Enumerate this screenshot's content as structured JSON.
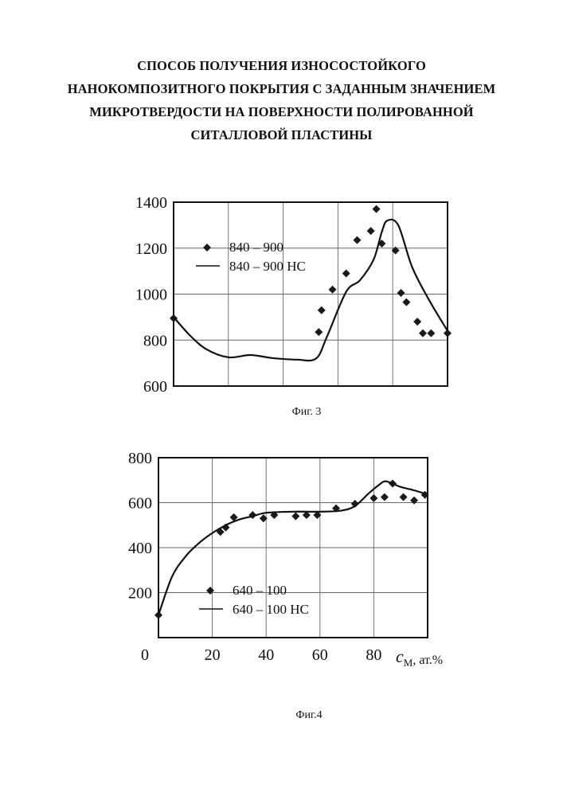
{
  "document": {
    "title_lines": [
      "СПОСОБ ПОЛУЧЕНИЯ ИЗНОСОСТОЙКОГО",
      "НАНОКОМПОЗИТНОГО ПОКРЫТИЯ С ЗАДАННЫМ ЗНАЧЕНИЕМ",
      "МИКРОТВЕРДОСТИ НА ПОВЕРХНОСТИ ПОЛИРОВАННОЙ",
      "СИТАЛЛОВОЙ ПЛАСТИНЫ"
    ]
  },
  "chart_data": [
    {
      "type": "scatter",
      "caption": "Фиг. 3",
      "title": "",
      "xlabel": "",
      "ylabel": "",
      "xlim": [
        0,
        100
      ],
      "ylim": [
        600,
        1400
      ],
      "x_ticks": [],
      "y_ticks": [
        600,
        800,
        1000,
        1200,
        1400
      ],
      "grid": true,
      "legend_placement": "upper-left",
      "series": [
        {
          "name": "840 – 900",
          "kind": "points",
          "x": [
            0,
            53,
            54,
            58,
            63,
            67,
            72,
            74,
            76,
            81,
            83,
            85,
            89,
            91,
            94,
            100
          ],
          "y": [
            895,
            835,
            930,
            1020,
            1090,
            1235,
            1275,
            1370,
            1220,
            1190,
            1005,
            965,
            880,
            830,
            830,
            830
          ]
        },
        {
          "name": "840 – 900 НС",
          "kind": "line",
          "x": [
            0,
            6,
            12,
            20,
            28,
            36,
            45,
            52,
            56,
            63,
            68,
            73,
            76,
            78,
            82,
            87,
            93,
            100
          ],
          "y": [
            900,
            820,
            760,
            725,
            735,
            722,
            715,
            720,
            815,
            1010,
            1060,
            1150,
            1270,
            1320,
            1300,
            1120,
            980,
            840
          ]
        }
      ]
    },
    {
      "type": "scatter",
      "caption": "Фиг.4",
      "title": "",
      "xlabel_symbol": "c",
      "xlabel_subscript": "М",
      "xlabel_unit": ", ат.%",
      "ylabel": "",
      "xlim": [
        0,
        100
      ],
      "ylim": [
        0,
        800
      ],
      "x_ticks": [
        0,
        20,
        40,
        60,
        80
      ],
      "y_ticks": [
        200,
        400,
        600,
        800
      ],
      "grid": true,
      "legend_placement": "lower-center",
      "series": [
        {
          "name": "640 – 100",
          "kind": "points",
          "x": [
            0,
            23,
            25,
            28,
            35,
            39,
            43,
            51,
            55,
            59,
            66,
            73,
            80,
            84,
            87,
            91,
            95,
            99
          ],
          "y": [
            100,
            470,
            490,
            535,
            545,
            530,
            545,
            540,
            545,
            545,
            575,
            595,
            620,
            625,
            685,
            625,
            610,
            635
          ]
        },
        {
          "name": "640 – 100 НС",
          "kind": "line",
          "x": [
            0,
            5,
            10,
            15,
            20,
            25,
            30,
            35,
            40,
            50,
            60,
            68,
            73,
            78,
            82,
            84,
            86,
            90,
            95,
            99
          ],
          "y": [
            100,
            270,
            360,
            420,
            465,
            500,
            525,
            540,
            555,
            560,
            560,
            565,
            585,
            640,
            680,
            695,
            690,
            670,
            655,
            640
          ]
        }
      ]
    }
  ]
}
